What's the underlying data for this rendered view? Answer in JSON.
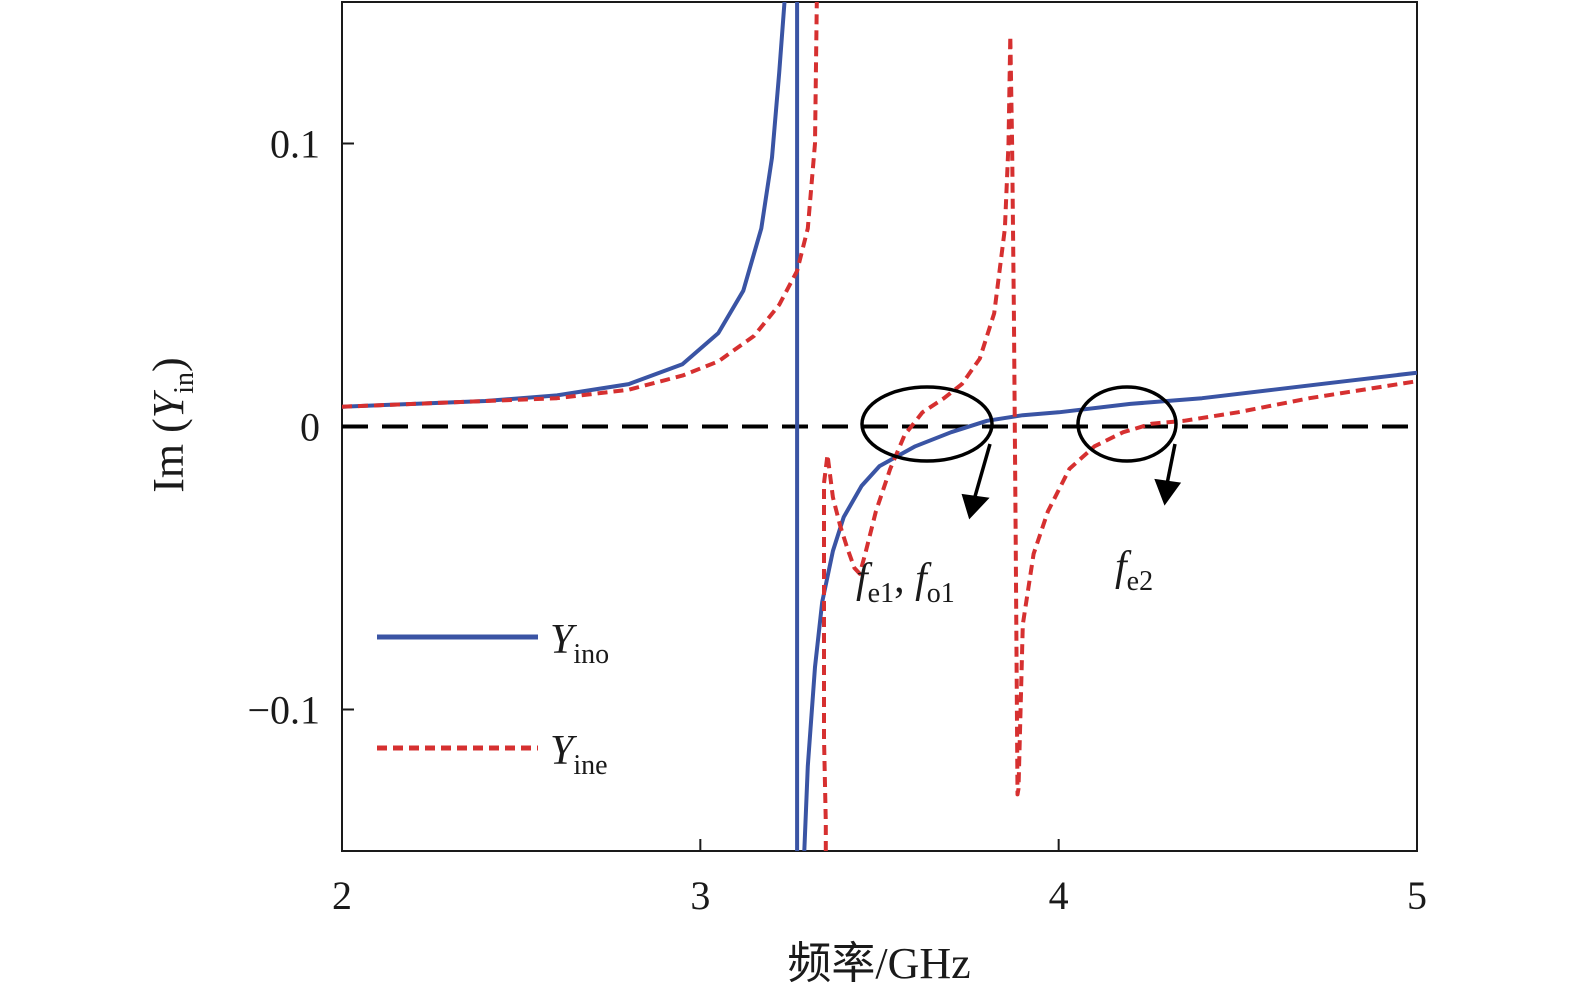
{
  "chart_data": {
    "type": "line",
    "xlabel": "频率/GHz",
    "ylabel": {
      "main": "Im (",
      "var": "Y",
      "sub": "in",
      "close": ")"
    },
    "xlim": [
      2,
      5
    ],
    "ylim": [
      -0.15,
      0.15
    ],
    "xticks": [
      2,
      3,
      4,
      5
    ],
    "xtick_labels": [
      "2",
      "3",
      "4",
      "5"
    ],
    "yticks": [
      -0.1,
      0,
      0.1
    ],
    "ytick_labels": [
      "−0.1",
      "0",
      "0.1"
    ],
    "grid": false,
    "legend_position": "bottom-left",
    "reference_line": {
      "y": 0,
      "style": "dashed",
      "color": "#000000"
    },
    "series": [
      {
        "name": "Yino",
        "label_main": "Y",
        "label_sub": "ino",
        "color": "#3a54a4",
        "style": "solid",
        "points": [
          [
            2.0,
            0.007
          ],
          [
            2.2,
            0.008
          ],
          [
            2.4,
            0.009
          ],
          [
            2.6,
            0.011
          ],
          [
            2.8,
            0.015
          ],
          [
            2.95,
            0.022
          ],
          [
            3.05,
            0.033
          ],
          [
            3.12,
            0.048
          ],
          [
            3.17,
            0.07
          ],
          [
            3.2,
            0.095
          ],
          [
            3.22,
            0.125
          ],
          [
            3.235,
            0.15
          ],
          null,
          [
            3.27,
            0.15
          ],
          [
            3.27,
            -0.15
          ],
          null,
          [
            3.29,
            -0.15
          ],
          [
            3.3,
            -0.12
          ],
          [
            3.32,
            -0.085
          ],
          [
            3.34,
            -0.062
          ],
          [
            3.37,
            -0.044
          ],
          [
            3.4,
            -0.032
          ],
          [
            3.45,
            -0.021
          ],
          [
            3.5,
            -0.014
          ],
          [
            3.6,
            -0.007
          ],
          [
            3.7,
            -0.002
          ],
          [
            3.8,
            0.002
          ],
          [
            3.9,
            0.004
          ],
          [
            4.0,
            0.005
          ],
          [
            4.2,
            0.008
          ],
          [
            4.4,
            0.01
          ],
          [
            4.6,
            0.013
          ],
          [
            4.8,
            0.016
          ],
          [
            5.0,
            0.019
          ]
        ]
      },
      {
        "name": "Yine",
        "label_main": "Y",
        "label_sub": "ine",
        "color": "#d63030",
        "style": "dashed",
        "points": [
          [
            2.0,
            0.007
          ],
          [
            2.2,
            0.008
          ],
          [
            2.4,
            0.009
          ],
          [
            2.6,
            0.01
          ],
          [
            2.8,
            0.013
          ],
          [
            2.95,
            0.018
          ],
          [
            3.05,
            0.023
          ],
          [
            3.15,
            0.032
          ],
          [
            3.22,
            0.043
          ],
          [
            3.27,
            0.055
          ],
          [
            3.3,
            0.07
          ],
          [
            3.32,
            0.1
          ],
          [
            3.325,
            0.15
          ],
          null,
          [
            3.35,
            -0.15
          ],
          [
            3.35,
            -0.14
          ],
          [
            3.345,
            -0.11
          ],
          [
            3.345,
            -0.02
          ],
          [
            3.355,
            -0.01
          ],
          [
            3.37,
            -0.025
          ],
          [
            3.39,
            -0.035
          ],
          [
            3.41,
            -0.043
          ],
          [
            3.43,
            -0.05
          ],
          [
            3.445,
            -0.052
          ],
          [
            3.46,
            -0.045
          ],
          [
            3.49,
            -0.03
          ],
          [
            3.53,
            -0.015
          ],
          [
            3.57,
            -0.003
          ],
          [
            3.62,
            0.005
          ],
          [
            3.68,
            0.01
          ],
          [
            3.73,
            0.015
          ],
          [
            3.78,
            0.024
          ],
          [
            3.82,
            0.04
          ],
          [
            3.85,
            0.07
          ],
          [
            3.86,
            0.1
          ],
          [
            3.865,
            0.138
          ],
          [
            3.87,
            0.1
          ],
          [
            3.875,
            0.04
          ],
          [
            3.88,
            -0.04
          ],
          [
            3.885,
            -0.13
          ],
          [
            3.888,
            -0.128
          ],
          [
            3.9,
            -0.07
          ],
          [
            3.93,
            -0.045
          ],
          [
            3.97,
            -0.03
          ],
          [
            4.03,
            -0.015
          ],
          [
            4.1,
            -0.007
          ],
          [
            4.18,
            -0.002
          ],
          [
            4.26,
            0.001
          ],
          [
            4.35,
            0.002
          ],
          [
            4.5,
            0.005
          ],
          [
            4.7,
            0.01
          ],
          [
            4.9,
            0.014
          ],
          [
            5.0,
            0.016
          ]
        ]
      }
    ],
    "annotations": [
      {
        "name": "fe1-fo1",
        "parts": [
          {
            "t": "f",
            "k": "main"
          },
          {
            "t": "e1",
            "k": "sub"
          },
          {
            "t": ", ",
            "k": "plain"
          },
          {
            "t": "f",
            "k": "main"
          },
          {
            "t": "o1",
            "k": "sub"
          }
        ]
      },
      {
        "name": "fe2",
        "parts": [
          {
            "t": "f",
            "k": "main"
          },
          {
            "t": "e2",
            "k": "sub"
          }
        ]
      }
    ]
  }
}
